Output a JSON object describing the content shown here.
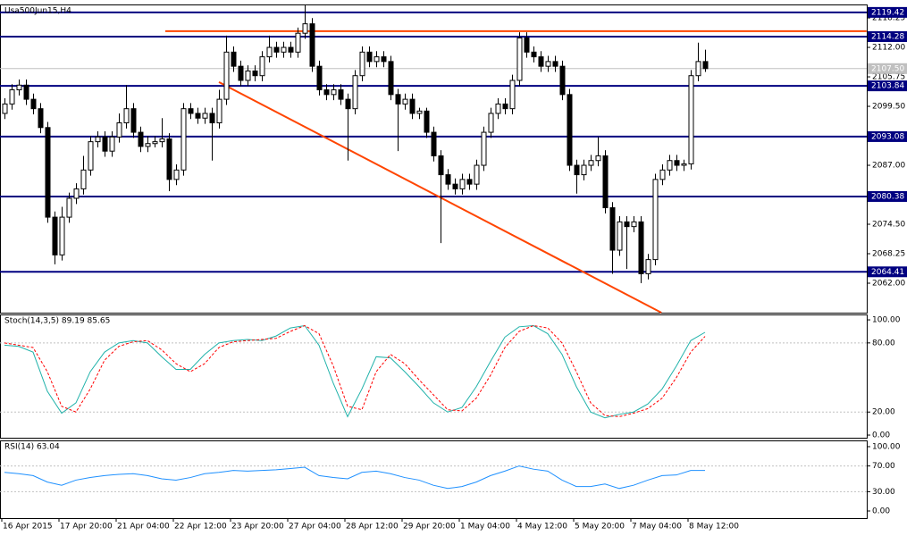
{
  "chart_data": [
    {
      "type": "candlestick",
      "title": "Usa500Jun15,H4",
      "ylim": [
        2055.75,
        2121.1
      ],
      "yticks": [
        {
          "value": 2118.25,
          "label": "2118.25"
        },
        {
          "value": 2112,
          "label": "2112.00"
        },
        {
          "value": 2105.75,
          "label": "2105.75"
        },
        {
          "value": 2099.5,
          "label": "2099.50"
        },
        {
          "value": 2087,
          "label": "2087.00"
        },
        {
          "value": 2074.5,
          "label": "2074.50"
        },
        {
          "value": 2068.25,
          "label": "2068.25"
        },
        {
          "value": 2062,
          "label": "2062.00"
        }
      ],
      "levels": [
        2119.42,
        2114.28,
        2103.84,
        2093.08,
        2080.38,
        2064.41
      ],
      "level_color": "#000080",
      "last_price": {
        "value": 2107.5,
        "label": "2107.50"
      },
      "trendlines": [
        {
          "color": "#ff4500",
          "points": [
            [
              30,
              2104.64
            ],
            [
              91.9,
              2055.75
            ]
          ]
        },
        {
          "color": "#ff4500",
          "points": [
            [
              22.5,
              2115.44
            ],
            [
              120.6,
              2115.44
            ]
          ]
        }
      ],
      "x_labels": [
        "16 Apr 2015",
        "17 Apr 20:00",
        "21 Apr 04:00",
        "22 Apr 12:00",
        "23 Apr 20:00",
        "27 Apr 04:00",
        "28 Apr 12:00",
        "29 Apr 20:00",
        "1 May 04:00",
        "4 May 12:00",
        "5 May 20:00",
        "7 May 04:00",
        "8 May 12:00"
      ],
      "ohlc": [
        [
          2098,
          2101.2,
          2096.8,
          2100
        ],
        [
          2100,
          2104.2,
          2098.8,
          2103
        ],
        [
          2103,
          2105.2,
          2101.8,
          2104
        ],
        [
          2104,
          2105.2,
          2099.8,
          2101
        ],
        [
          2101,
          2102.2,
          2097.8,
          2099
        ],
        [
          2099,
          2100.2,
          2093.8,
          2095
        ],
        [
          2095,
          2096.2,
          2074.8,
          2076
        ],
        [
          2076,
          2077.2,
          2066,
          2068
        ],
        [
          2068,
          2078.2,
          2066.8,
          2076
        ],
        [
          2076,
          2081.2,
          2074.8,
          2080
        ],
        [
          2080,
          2083.2,
          2078.8,
          2082
        ],
        [
          2082,
          2089,
          2080.8,
          2086
        ],
        [
          2086,
          2093.2,
          2084.8,
          2092
        ],
        [
          2092,
          2094.2,
          2090.8,
          2093
        ],
        [
          2093,
          2094.2,
          2088.8,
          2090
        ],
        [
          2090,
          2094.2,
          2088.8,
          2093
        ],
        [
          2093,
          2098,
          2091.8,
          2096
        ],
        [
          2096,
          2104,
          2094.8,
          2099
        ],
        [
          2099,
          2100.2,
          2092.8,
          2094
        ],
        [
          2094,
          2095.2,
          2089.8,
          2091
        ],
        [
          2091,
          2093.2,
          2089.8,
          2091.6
        ],
        [
          2091.6,
          2093.2,
          2090.8,
          2092
        ],
        [
          2092,
          2097,
          2090.8,
          2092.6
        ],
        [
          2092.6,
          2093.8,
          2081.5,
          2084
        ],
        [
          2084,
          2087.2,
          2082.8,
          2086
        ],
        [
          2086,
          2100.2,
          2084.8,
          2099
        ],
        [
          2099,
          2100.2,
          2096.8,
          2098
        ],
        [
          2098,
          2099.2,
          2095.8,
          2097
        ],
        [
          2097,
          2099.2,
          2095.8,
          2098
        ],
        [
          2098,
          2099.2,
          2088,
          2096
        ],
        [
          2096,
          2103,
          2094.8,
          2101
        ],
        [
          2101,
          2114.5,
          2099.8,
          2111
        ],
        [
          2111,
          2112.2,
          2106.8,
          2108
        ],
        [
          2108,
          2109.2,
          2103.8,
          2105
        ],
        [
          2105,
          2108.2,
          2103.8,
          2107
        ],
        [
          2107,
          2108.2,
          2104.8,
          2106
        ],
        [
          2106,
          2111.2,
          2104.8,
          2110
        ],
        [
          2110,
          2114.5,
          2108.8,
          2112
        ],
        [
          2112,
          2113.2,
          2109.8,
          2111
        ],
        [
          2111,
          2113.2,
          2109.8,
          2112
        ],
        [
          2112,
          2113.2,
          2109.8,
          2111
        ],
        [
          2111,
          2116.2,
          2109.8,
          2115
        ],
        [
          2115,
          2121,
          2113.8,
          2117
        ],
        [
          2117,
          2118.2,
          2106.8,
          2108
        ],
        [
          2108,
          2109.2,
          2101.8,
          2103
        ],
        [
          2103,
          2104.2,
          2100.8,
          2102
        ],
        [
          2102,
          2104.2,
          2100.8,
          2103
        ],
        [
          2103,
          2104.2,
          2099.8,
          2101
        ],
        [
          2101,
          2102.2,
          2088,
          2099
        ],
        [
          2099,
          2107.2,
          2097.8,
          2106
        ],
        [
          2106,
          2112.2,
          2104.8,
          2111
        ],
        [
          2111,
          2112.2,
          2107.8,
          2109
        ],
        [
          2109,
          2111.2,
          2107.8,
          2110
        ],
        [
          2110,
          2111.2,
          2107.8,
          2109
        ],
        [
          2109,
          2110.2,
          2100.8,
          2102
        ],
        [
          2102,
          2103.2,
          2090,
          2100
        ],
        [
          2100,
          2102.2,
          2098.8,
          2101
        ],
        [
          2101,
          2102.2,
          2096.8,
          2098
        ],
        [
          2098,
          2099.2,
          2096.8,
          2098.5
        ],
        [
          2098.5,
          2099.2,
          2092.8,
          2094
        ],
        [
          2094,
          2095.2,
          2087.8,
          2089
        ],
        [
          2089,
          2090.2,
          2070.5,
          2085
        ],
        [
          2085,
          2086.2,
          2081.8,
          2083
        ],
        [
          2083,
          2084.2,
          2080.8,
          2082
        ],
        [
          2082,
          2085.2,
          2080.8,
          2084
        ],
        [
          2084,
          2085.2,
          2081.8,
          2083
        ],
        [
          2083,
          2088.2,
          2081.8,
          2087
        ],
        [
          2087,
          2095.2,
          2085.8,
          2094
        ],
        [
          2094,
          2099.2,
          2092.8,
          2098
        ],
        [
          2098,
          2101.2,
          2096.8,
          2100
        ],
        [
          2100,
          2101.2,
          2097.8,
          2099
        ],
        [
          2099,
          2106.2,
          2097.8,
          2105
        ],
        [
          2105,
          2115.2,
          2103.8,
          2114
        ],
        [
          2114,
          2115.2,
          2109.8,
          2111
        ],
        [
          2111,
          2112.2,
          2108.8,
          2110
        ],
        [
          2110,
          2111.2,
          2106.8,
          2108
        ],
        [
          2108,
          2110.2,
          2106.8,
          2109
        ],
        [
          2109,
          2110.2,
          2106.8,
          2108
        ],
        [
          2108,
          2109.2,
          2100.8,
          2102
        ],
        [
          2102,
          2103.2,
          2085.8,
          2087
        ],
        [
          2087,
          2088.2,
          2081,
          2085
        ],
        [
          2085,
          2088.2,
          2083.8,
          2087
        ],
        [
          2087,
          2089.2,
          2085.8,
          2088
        ],
        [
          2088,
          2093,
          2086.8,
          2089
        ],
        [
          2089,
          2090.2,
          2076.8,
          2078
        ],
        [
          2078,
          2079.2,
          2064,
          2069
        ],
        [
          2069,
          2076.2,
          2067.8,
          2075
        ],
        [
          2075,
          2076.2,
          2065,
          2074
        ],
        [
          2074,
          2076.2,
          2072.8,
          2075
        ],
        [
          2075,
          2076.2,
          2062,
          2064
        ],
        [
          2064,
          2068.2,
          2062.8,
          2067
        ],
        [
          2067,
          2085.2,
          2065.8,
          2084
        ],
        [
          2084,
          2087.2,
          2082.8,
          2086
        ],
        [
          2086,
          2089.2,
          2084.8,
          2088
        ],
        [
          2088,
          2089.2,
          2085.8,
          2087
        ],
        [
          2087,
          2088.2,
          2085.8,
          2087.3
        ],
        [
          2087.3,
          2107.2,
          2086.1,
          2106
        ],
        [
          2106,
          2113,
          2104.8,
          2109
        ],
        [
          2109,
          2111.5,
          2106.8,
          2107.5
        ]
      ]
    },
    {
      "type": "line",
      "title": "Stoch(14,3,5) 89.19 85.65",
      "ylim": [
        -2.3,
        104.7
      ],
      "yticks": [
        {
          "value": 100,
          "label": "100.00"
        },
        {
          "value": 80,
          "label": "80.00"
        },
        {
          "value": 20,
          "label": "20.00"
        },
        {
          "value": 0,
          "label": "0.00"
        }
      ],
      "levels": [
        80,
        20
      ],
      "series": [
        {
          "color": "#20b2aa",
          "values": [
            78,
            77,
            72,
            38,
            19,
            28,
            55,
            72,
            80,
            82,
            80,
            68,
            57,
            57,
            70,
            80,
            82,
            83,
            82,
            86,
            93,
            95,
            78,
            45,
            16,
            40,
            68,
            67,
            55,
            42,
            28,
            20,
            24,
            42,
            64,
            85,
            94,
            95,
            88,
            70,
            42,
            20,
            15,
            18,
            20,
            27,
            40,
            60,
            82,
            89.19
          ]
        },
        {
          "color": "#ff0000",
          "dash": true,
          "values": [
            80,
            78,
            76,
            55,
            25,
            20,
            40,
            65,
            77,
            81,
            82,
            74,
            62,
            55,
            62,
            76,
            81,
            82,
            83,
            84,
            90,
            95,
            88,
            60,
            25,
            22,
            55,
            70,
            62,
            48,
            35,
            22,
            21,
            32,
            52,
            76,
            90,
            95,
            93,
            80,
            55,
            28,
            17,
            16,
            19,
            23,
            32,
            50,
            72,
            85.65
          ]
        }
      ]
    },
    {
      "type": "line",
      "title": "RSI(14) 63.04",
      "ylim": [
        -11.1,
        109.7
      ],
      "yticks": [
        {
          "value": 100,
          "label": "100.00"
        },
        {
          "value": 70,
          "label": "70.00"
        },
        {
          "value": 30,
          "label": "30.00"
        },
        {
          "value": 0,
          "label": "0.00"
        }
      ],
      "levels": [
        70,
        30
      ],
      "series": [
        {
          "color": "#1e90ff",
          "values": [
            60,
            58,
            55,
            45,
            40,
            48,
            52,
            55,
            57,
            58,
            55,
            50,
            48,
            52,
            58,
            60,
            63,
            62,
            63,
            64,
            66,
            68,
            55,
            52,
            50,
            60,
            62,
            58,
            52,
            48,
            40,
            35,
            38,
            45,
            55,
            62,
            70,
            65,
            62,
            48,
            38,
            38,
            42,
            35,
            40,
            48,
            55,
            56,
            63,
            63.04
          ]
        }
      ]
    }
  ]
}
